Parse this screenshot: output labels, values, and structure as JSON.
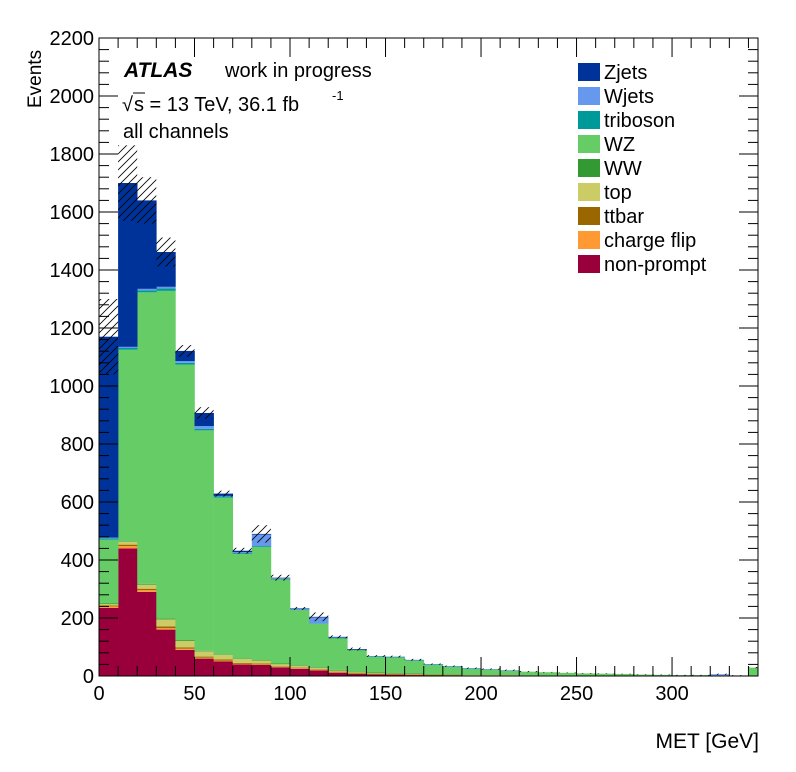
{
  "chart_data": {
    "type": "bar",
    "stacked": true,
    "title": "",
    "xlabel": "MET [GeV]",
    "ylabel": "Events",
    "xlim": [
      0,
      345
    ],
    "ylim": [
      0,
      2200
    ],
    "bin_width": 10,
    "x_ticks": [
      0,
      50,
      100,
      150,
      200,
      250,
      300
    ],
    "y_ticks": [
      0,
      200,
      400,
      600,
      800,
      1000,
      1200,
      1400,
      1600,
      1800,
      2000,
      2200
    ],
    "labels": {
      "experiment": "ATLAS",
      "status": "work in progress",
      "energy": "s = 13 TeV, 36.1 fb",
      "sqrt_symbol": "√",
      "lumi_exponent": "-1",
      "channel": "all channels"
    },
    "legend_position": "top-right",
    "legend_order": [
      "Zjets",
      "Wjets",
      "triboson",
      "WZ",
      "WW",
      "top",
      "ttbar",
      "charge flip",
      "non-prompt"
    ],
    "bin_lefts": [
      0,
      10,
      20,
      30,
      40,
      50,
      60,
      70,
      80,
      90,
      100,
      110,
      120,
      130,
      140,
      150,
      160,
      170,
      180,
      190,
      200,
      210,
      220,
      230,
      240,
      250,
      260,
      270,
      280,
      290,
      300,
      310,
      320,
      330,
      340
    ],
    "series": [
      {
        "name": "non-prompt",
        "color": "#99003b",
        "values": [
          235,
          440,
          290,
          160,
          90,
          60,
          50,
          40,
          38,
          30,
          25,
          20,
          12,
          8,
          6,
          5,
          4,
          3,
          3,
          2,
          2,
          2,
          1,
          1,
          1,
          1,
          1,
          1,
          0,
          0,
          0,
          0,
          0,
          0,
          1
        ]
      },
      {
        "name": "charge flip",
        "color": "#ff9933",
        "values": [
          5,
          8,
          6,
          5,
          4,
          3,
          3,
          2,
          2,
          2,
          2,
          1,
          1,
          1,
          1,
          1,
          1,
          0,
          0,
          0,
          0,
          0,
          0,
          0,
          0,
          0,
          0,
          0,
          0,
          0,
          0,
          0,
          0,
          0,
          0
        ]
      },
      {
        "name": "ttbar",
        "color": "#996600",
        "values": [
          3,
          5,
          5,
          6,
          5,
          4,
          4,
          3,
          3,
          2,
          2,
          2,
          2,
          1,
          1,
          1,
          1,
          1,
          1,
          0,
          0,
          0,
          0,
          0,
          0,
          0,
          0,
          0,
          0,
          0,
          0,
          0,
          0,
          0,
          0
        ]
      },
      {
        "name": "top",
        "color": "#cccc66",
        "values": [
          5,
          10,
          14,
          24,
          22,
          18,
          16,
          14,
          10,
          8,
          7,
          6,
          5,
          4,
          3,
          2,
          2,
          2,
          1,
          1,
          1,
          1,
          1,
          1,
          1,
          0,
          0,
          0,
          0,
          0,
          0,
          0,
          0,
          0,
          0
        ]
      },
      {
        "name": "WW",
        "color": "#339933",
        "values": [
          2,
          2,
          3,
          3,
          3,
          2,
          2,
          2,
          2,
          1,
          1,
          1,
          1,
          1,
          1,
          1,
          1,
          1,
          1,
          0,
          0,
          0,
          0,
          0,
          0,
          0,
          0,
          0,
          0,
          0,
          0,
          0,
          0,
          0,
          0
        ]
      },
      {
        "name": "WZ",
        "color": "#66cc66",
        "values": [
          220,
          660,
          1005,
          1130,
          950,
          760,
          540,
          360,
          390,
          290,
          190,
          150,
          110,
          75,
          55,
          55,
          45,
          32,
          26,
          22,
          20,
          16,
          13,
          11,
          9,
          8,
          7,
          6,
          5,
          4,
          3,
          3,
          2,
          2,
          28
        ]
      },
      {
        "name": "triboson",
        "color": "#009999",
        "values": [
          5,
          6,
          7,
          8,
          6,
          5,
          4,
          3,
          3,
          2,
          2,
          2,
          1,
          1,
          1,
          1,
          1,
          1,
          1,
          1,
          0,
          0,
          0,
          0,
          0,
          0,
          0,
          0,
          0,
          0,
          0,
          0,
          0,
          0,
          0
        ]
      },
      {
        "name": "Wjets",
        "color": "#6699ee",
        "values": [
          2,
          4,
          5,
          6,
          6,
          10,
          2,
          3,
          40,
          2,
          3,
          20,
          2,
          1,
          1,
          1,
          1,
          1,
          1,
          1,
          1,
          1,
          0,
          0,
          0,
          0,
          0,
          0,
          0,
          0,
          0,
          0,
          4,
          0,
          0
        ]
      },
      {
        "name": "Zjets",
        "color": "#003399",
        "values": [
          693,
          565,
          305,
          120,
          35,
          45,
          8,
          5,
          2,
          2,
          1,
          2,
          1,
          1,
          0,
          0,
          0,
          0,
          0,
          0,
          0,
          0,
          0,
          0,
          0,
          0,
          0,
          0,
          0,
          0,
          0,
          0,
          0,
          0,
          0
        ]
      }
    ],
    "uncertainty_band": {
      "style": "hatched",
      "half_width": [
        130,
        130,
        80,
        50,
        20,
        20,
        10,
        10,
        30,
        10,
        5,
        15,
        5,
        5,
        3,
        3,
        3,
        2,
        2,
        2,
        2,
        2,
        2,
        1,
        1,
        1,
        1,
        1,
        1,
        1,
        1,
        1,
        2,
        1,
        2
      ]
    }
  }
}
